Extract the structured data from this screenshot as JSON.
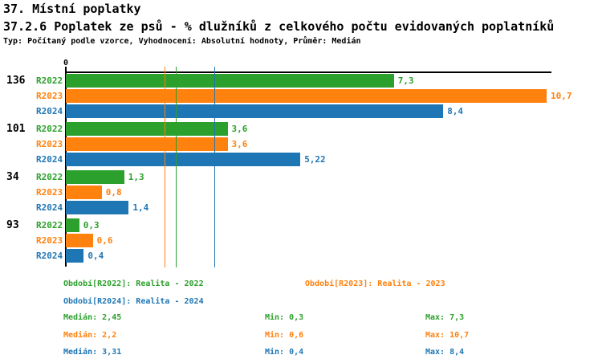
{
  "header": {
    "title": "37. Místní poplatky",
    "subtitle": "37.2.6 Poplatek ze psů - % dlužníků z celkového počtu evidovaných poplatníků",
    "meta": "Typ: Počítaný podle vzorce, Vyhodnocení: Absolutní hodnoty, Průměr: Medián"
  },
  "colors": {
    "r2022": "#2ca02c",
    "r2023": "#ff810e",
    "r2024": "#1f76b4",
    "axis": "#000000"
  },
  "chart_data": {
    "type": "bar",
    "orientation": "horizontal",
    "title": "37.2.6 Poplatek ze psů - % dlužníků z celkového počtu evidovaných poplatníků",
    "categories": [
      "136",
      "101",
      "34",
      "93"
    ],
    "series": [
      {
        "name": "R2022",
        "color_key": "r2022",
        "values": [
          7.3,
          3.6,
          1.3,
          0.3
        ],
        "labels": [
          "7,3",
          "3,6",
          "1,3",
          "0,3"
        ],
        "median": 2.45,
        "min": 0.3,
        "max": 7.3
      },
      {
        "name": "R2023",
        "color_key": "r2023",
        "values": [
          10.7,
          3.6,
          0.8,
          0.6
        ],
        "labels": [
          "10,7",
          "3,6",
          "0,8",
          "0,6"
        ],
        "median": 2.2,
        "min": 0.6,
        "max": 10.7
      },
      {
        "name": "R2024",
        "color_key": "r2024",
        "values": [
          8.4,
          5.22,
          1.4,
          0.4
        ],
        "labels": [
          "8,4",
          "5,22",
          "1,4",
          "0,4"
        ],
        "median": 3.31,
        "min": 0.4,
        "max": 8.4
      }
    ],
    "axis": {
      "zero_label": "0",
      "xlim": [
        0,
        10.81
      ],
      "grid": false,
      "median_lines_shown": true
    }
  },
  "legend": {
    "period_labels": [
      {
        "text": "Období[R2022]: Realita - 2022",
        "color_key": "r2022"
      },
      {
        "text": "Období[R2023]: Realita - 2023",
        "color_key": "r2023"
      },
      {
        "text": "Období[R2024]: Realita - 2024",
        "color_key": "r2024"
      }
    ],
    "stats": [
      {
        "median": "Medián: 2,45",
        "min": "Min: 0,3",
        "max": "Max: 7,3",
        "color_key": "r2022"
      },
      {
        "median": "Medián: 2,2",
        "min": "Min: 0,6",
        "max": "Max: 10,7",
        "color_key": "r2023"
      },
      {
        "median": "Medián: 3,31",
        "min": "Min: 0,4",
        "max": "Max: 8,4",
        "color_key": "r2024"
      }
    ]
  }
}
